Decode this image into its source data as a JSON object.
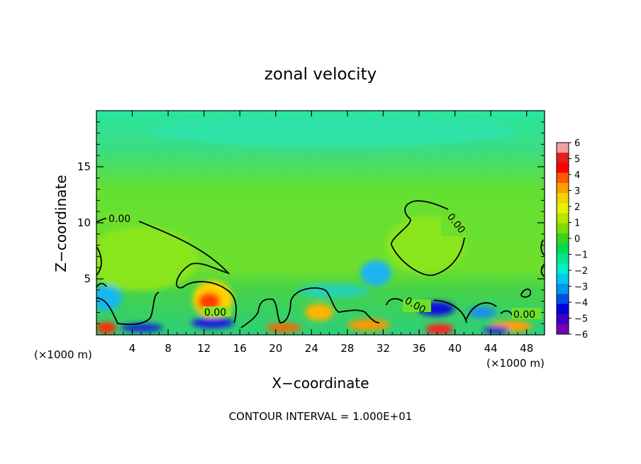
{
  "chart_data": {
    "type": "heatmap",
    "title": "zonal velocity",
    "xlabel": "X−coordinate",
    "ylabel": "Z−coordinate",
    "x_unit_left": "(×1000 m)",
    "x_unit_right": "(×1000 m)",
    "footer": "CONTOUR INTERVAL = 1.000E+01",
    "xlim": [
      0,
      50
    ],
    "ylim": [
      0,
      20
    ],
    "x_ticks": [
      4,
      8,
      12,
      16,
      20,
      24,
      28,
      32,
      36,
      40,
      44,
      48
    ],
    "y_ticks": [
      5,
      10,
      15
    ],
    "contour_labels": [
      "0.00",
      "0.00",
      "0.00",
      "0.00",
      "0.00"
    ],
    "colorbar": {
      "ticks": [
        "6",
        "5",
        "4",
        "3",
        "2",
        "1",
        "0",
        "−1",
        "−2",
        "−3",
        "−4",
        "−5",
        "−6"
      ],
      "range": [
        -6,
        6
      ],
      "colors": [
        "#f5a0a0",
        "#e61e1e",
        "#ff0000",
        "#ff5a00",
        "#ff9f00",
        "#f0d200",
        "#e6f000",
        "#b4e600",
        "#7ddc00",
        "#3cd21e",
        "#00dc50",
        "#00e68c",
        "#00f0c8",
        "#00c8f0",
        "#0096f0",
        "#0050e6",
        "#0000dc",
        "#3c00c8",
        "#7800b4"
      ]
    },
    "features": [
      {
        "name": "upper layer velocity",
        "x_range": [
          0,
          50
        ],
        "z_range": [
          13,
          20
        ],
        "value": -1
      },
      {
        "name": "mid layer velocity",
        "x_range": [
          0,
          50
        ],
        "z_range": [
          5,
          13
        ],
        "value": 0
      },
      {
        "name": "positive cell",
        "x_center": 4,
        "z_center": 7.5,
        "value": 1
      },
      {
        "name": "positive cell",
        "x_center": 37,
        "z_center": 7.5,
        "value": 1
      },
      {
        "name": "negative cell",
        "x_center": 31,
        "z_center": 5.5,
        "value": -3
      },
      {
        "name": "positive cell",
        "x_center": 12.5,
        "z_center": 3,
        "value": 4
      },
      {
        "name": "negative cell",
        "x_center": 38,
        "z_center": 2.3,
        "value": -4
      },
      {
        "name": "negative cell",
        "x_center": 12,
        "z_center": 1,
        "value": -4
      },
      {
        "name": "positive cell",
        "x_center": 24,
        "z_center": 2,
        "value": 3
      },
      {
        "name": "positive cell",
        "x_center": 39,
        "z_center": 0.3,
        "value": 5
      }
    ]
  }
}
